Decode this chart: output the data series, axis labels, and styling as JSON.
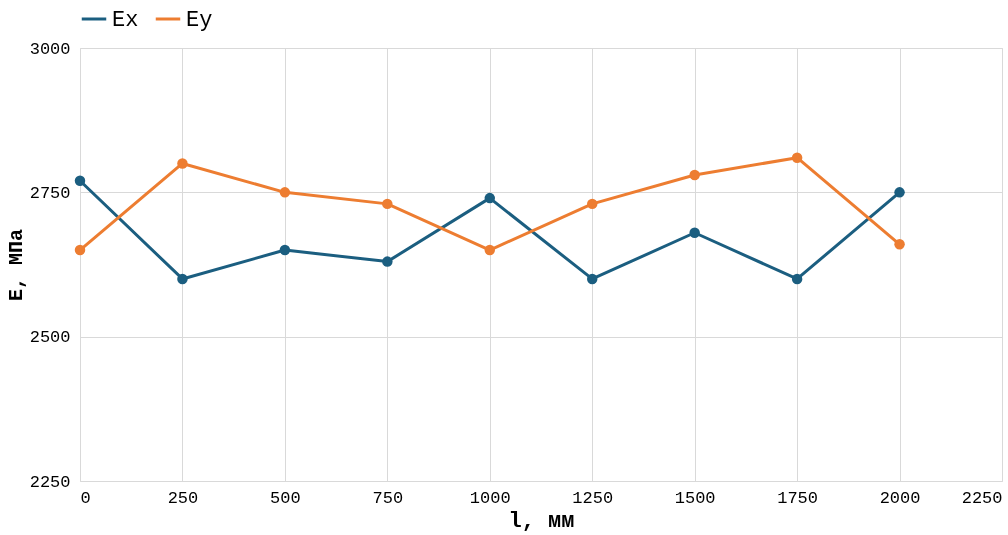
{
  "chart_data": {
    "type": "line",
    "xlabel": "l, мм",
    "ylabel": "E, МПа",
    "x": [
      0,
      250,
      500,
      750,
      1000,
      1250,
      1500,
      1750,
      2000
    ],
    "series": [
      {
        "name": "Ex",
        "color": "#1b5e80",
        "values": [
          2770,
          2600,
          2650,
          2630,
          2740,
          2600,
          2680,
          2600,
          2750
        ]
      },
      {
        "name": "Ey",
        "color": "#ed7d31",
        "values": [
          2650,
          2800,
          2750,
          2730,
          2650,
          2730,
          2780,
          2810,
          2660
        ]
      }
    ],
    "xlim": [
      0,
      2250
    ],
    "xticks": [
      0,
      250,
      500,
      750,
      1000,
      1250,
      1500,
      1750,
      2000,
      2250
    ],
    "ylim": [
      2250,
      3000
    ],
    "yticks": [
      2250,
      2500,
      2750,
      3000
    ],
    "grid": true,
    "legend": "top",
    "marker": "circle",
    "line_style": "solid"
  }
}
